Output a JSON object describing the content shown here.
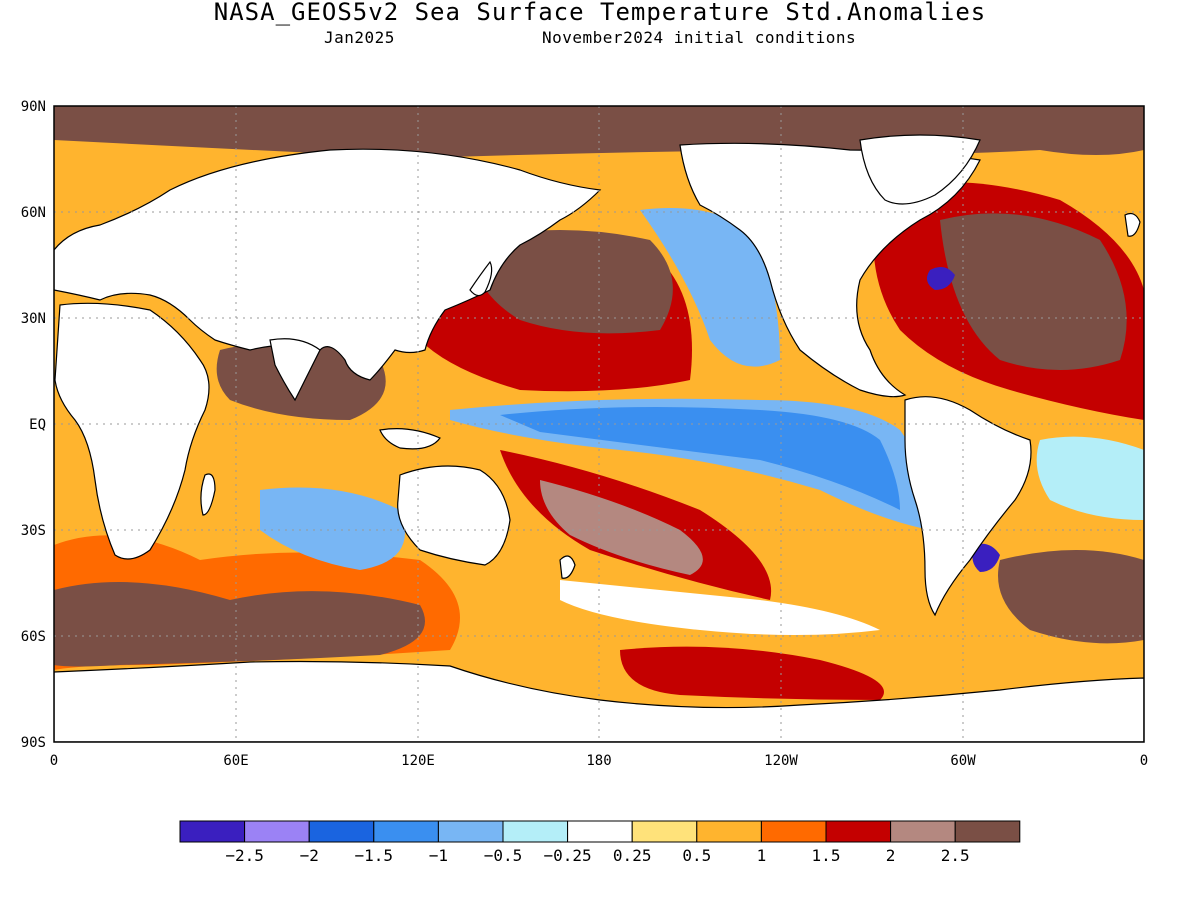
{
  "title": "NASA_GEOS5v2 Sea Surface Temperature Std.Anomalies",
  "subtitle_left": "Jan2025",
  "subtitle_right": "November2024 initial conditions",
  "lat_labels": [
    "90N",
    "60N",
    "30N",
    "EQ",
    "30S",
    "60S",
    "90S"
  ],
  "lon_labels": [
    "0",
    "60E",
    "120E",
    "180",
    "120W",
    "60W",
    "0"
  ],
  "colorbar": {
    "colors": [
      "#3a1fbf",
      "#9b82f5",
      "#1a64e0",
      "#3a8ff0",
      "#78b6f4",
      "#b4eef8",
      "#ffffff",
      "#ffe27a",
      "#ffb42e",
      "#ff6a00",
      "#c40000",
      "#b48880",
      "#7a4f45"
    ],
    "labels": [
      "-2.5",
      "-2",
      "-1.5",
      "-1",
      "-0.5",
      "-0.25",
      "0.25",
      "0.5",
      "1",
      "1.5",
      "2",
      "2.5"
    ]
  },
  "colors": {
    "land": "#ffffff",
    "strong_warm": "#7a4f45",
    "cold_tongue": "#3a8ff0"
  }
}
